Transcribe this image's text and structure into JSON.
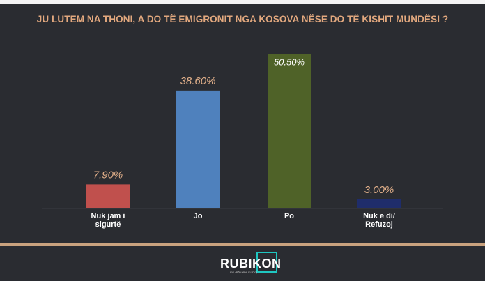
{
  "chart_data": {
    "type": "bar",
    "title": "JU LUTEM NA THONI, A DO TË EMIGRONIT NGA KOSOVA NËSE DO TË KISHIT MUNDËSI ?",
    "categories": [
      [
        "Nuk jam i",
        "sigurtë"
      ],
      [
        "Jo"
      ],
      [
        "Po"
      ],
      [
        "Nuk e di/",
        "Refuzoj"
      ]
    ],
    "values": [
      7.9,
      38.6,
      50.5,
      3.0
    ],
    "value_labels": [
      "7.90%",
      "38.60%",
      "50.50%",
      "3.00%"
    ],
    "colors": [
      "#c0504d",
      "#4f81bd",
      "#4f6228",
      "#1f2d6b"
    ],
    "ylim": [
      0,
      55
    ],
    "grid": false,
    "legend": "none"
  },
  "branding": {
    "logo_text": "RUBIKON",
    "logo_tagline": "me Albulenë Kurtaj"
  }
}
